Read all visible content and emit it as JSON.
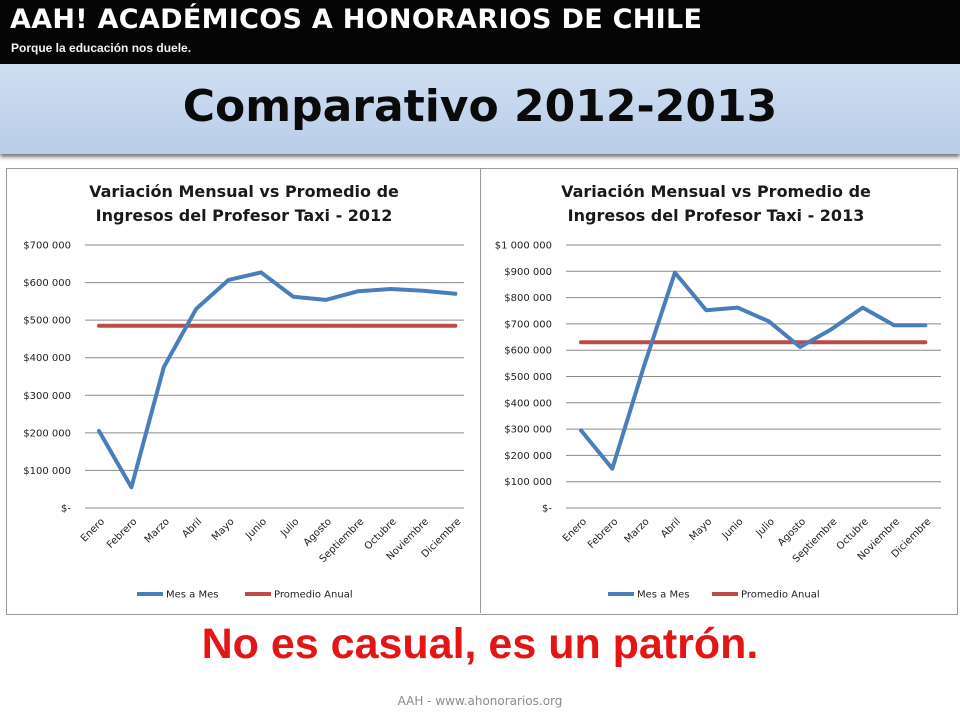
{
  "banner": {
    "title": "AAH! ACADÉMICOS A HONORARIOS DE CHILE",
    "subtitle": "Porque la educación nos duele."
  },
  "slide_title": "Comparativo 2012-2013",
  "tagline": "No es casual, es un patrón.",
  "footer": "AAH - www.ahonorarios.org",
  "colors": {
    "series_mes": "#4a7ebb",
    "series_promedio": "#be4b48",
    "tagline": "#e31515",
    "gridline": "#8a8a8a"
  },
  "chart_data": [
    {
      "type": "line",
      "title_lines": [
        "Variación Mensual vs Promedio de",
        "Ingresos del Profesor Taxi - 2012"
      ],
      "categories": [
        "Enero",
        "Febrero",
        "Marzo",
        "Abril",
        "Mayo",
        "Junio",
        "Julio",
        "Agosto",
        "Septiembre",
        "Octubre",
        "Noviembre",
        "Diciembre"
      ],
      "ylim": [
        0,
        700000
      ],
      "yticks": [
        0,
        100000,
        200000,
        300000,
        400000,
        500000,
        600000,
        700000
      ],
      "ytick_labels": [
        "$-",
        "$100 000",
        "$200 000",
        "$300 000",
        "$400 000",
        "$500 000",
        "$600 000",
        "$700 000"
      ],
      "grid": true,
      "legend_position": "bottom",
      "series": [
        {
          "name": "Mes a Mes",
          "values": [
            205000,
            55000,
            375000,
            530000,
            607000,
            627000,
            562000,
            554000,
            577000,
            583000,
            578000,
            570000
          ]
        },
        {
          "name": "Promedio Anual",
          "values": [
            485000,
            485000,
            485000,
            485000,
            485000,
            485000,
            485000,
            485000,
            485000,
            485000,
            485000,
            485000
          ]
        }
      ]
    },
    {
      "type": "line",
      "title_lines": [
        "Variación Mensual vs Promedio de",
        "Ingresos del Profesor Taxi - 2013"
      ],
      "categories": [
        "Enero",
        "Febrero",
        "Marzo",
        "Abril",
        "Mayo",
        "Junio",
        "Julio",
        "Agosto",
        "Septiembre",
        "Octubre",
        "Noviembre",
        "Diciembre"
      ],
      "ylim": [
        0,
        1000000
      ],
      "yticks": [
        0,
        100000,
        200000,
        300000,
        400000,
        500000,
        600000,
        700000,
        800000,
        900000,
        1000000
      ],
      "ytick_labels": [
        "$-",
        "$100 000",
        "$200 000",
        "$300 000",
        "$400 000",
        "$500 000",
        "$600 000",
        "$700 000",
        "$800 000",
        "$900 000",
        "$1 000 000"
      ],
      "grid": true,
      "legend_position": "bottom",
      "series": [
        {
          "name": "Mes a Mes",
          "values": [
            295000,
            150000,
            535000,
            895000,
            752000,
            762000,
            710000,
            612000,
            680000,
            762000,
            695000,
            695000
          ]
        },
        {
          "name": "Promedio Anual",
          "values": [
            630000,
            630000,
            630000,
            630000,
            630000,
            630000,
            630000,
            630000,
            630000,
            630000,
            630000,
            630000
          ]
        }
      ]
    }
  ]
}
